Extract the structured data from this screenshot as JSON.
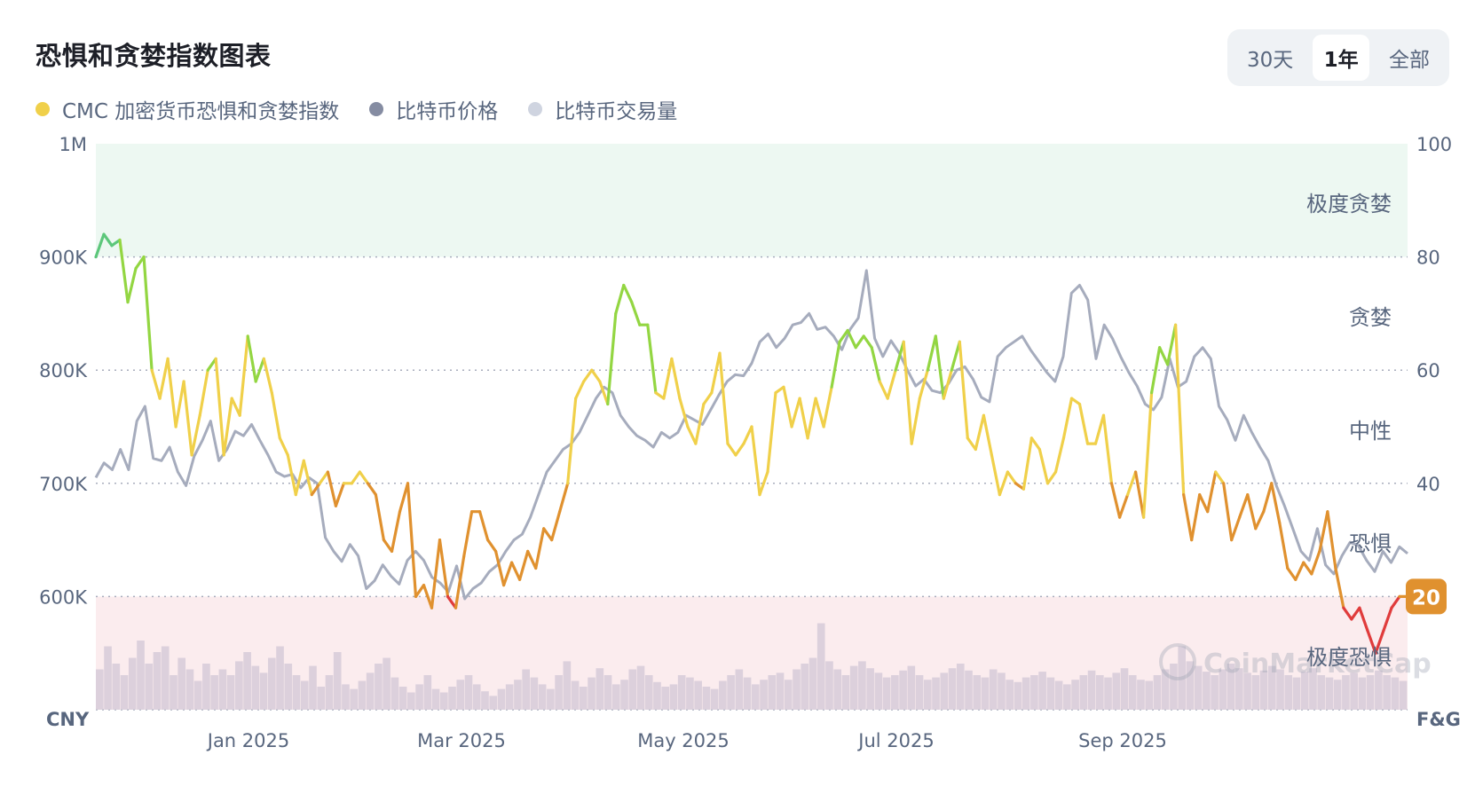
{
  "title": "恐惧和贪婪指数图表",
  "range_tabs": [
    {
      "label": "30天",
      "active": false
    },
    {
      "label": "1年",
      "active": true
    },
    {
      "label": "全部",
      "active": false
    }
  ],
  "legend": [
    {
      "label": "CMC 加密货币恐惧和贪婪指数",
      "color": "#f0d04a"
    },
    {
      "label": "比特币价格",
      "color": "#858ca2"
    },
    {
      "label": "比特币交易量",
      "color": "#cfd4e0"
    }
  ],
  "watermark": "CoinMarketCap",
  "colors": {
    "extreme_fear": "#e03c3c",
    "fear": "#e0912f",
    "neutral": "#f0d04a",
    "greed": "#93d642",
    "extreme_greed": "#5dc77b",
    "price_line": "#a6acbd",
    "volume_bars": "#d6cbd8",
    "greed_zone": "#edf8f2",
    "fear_zone": "#fbecee",
    "badge": "#e0912f"
  },
  "chart_data": {
    "type": "line",
    "x_ticks": [
      "Jan 2025",
      "Mar 2025",
      "May 2025",
      "Jul 2025",
      "Sep 2025"
    ],
    "left_axis": {
      "unit_label": "CNY",
      "ticks": [
        "1M",
        "900K",
        "800K",
        "700K",
        "600K"
      ],
      "min": 500000,
      "max": 1000000
    },
    "right_axis": {
      "unit_label": "F&G",
      "ticks": [
        "100",
        "80",
        "60",
        "40",
        "20"
      ],
      "min": 0,
      "max": 100
    },
    "zones": [
      {
        "label": "极度贪婪",
        "from": 80,
        "to": 100
      },
      {
        "label": "贪婪",
        "from": 60,
        "to": 80
      },
      {
        "label": "中性",
        "from": 40,
        "to": 60
      },
      {
        "label": "恐惧",
        "from": 20,
        "to": 40
      },
      {
        "label": "极度恐惧",
        "from": 0,
        "to": 20
      }
    ],
    "current_value": "20",
    "fear_greed_series": {
      "name": "CMC 加密货币恐惧和贪婪指数",
      "x_period": "approx. Dec 2024 – Nov 2025, evenly spaced",
      "values": [
        80,
        84,
        82,
        83,
        72,
        78,
        80,
        60,
        55,
        62,
        50,
        58,
        45,
        52,
        60,
        62,
        45,
        55,
        52,
        66,
        58,
        62,
        56,
        48,
        45,
        38,
        44,
        38,
        40,
        42,
        36,
        40,
        40,
        42,
        40,
        38,
        30,
        28,
        35,
        40,
        20,
        22,
        18,
        30,
        20,
        18,
        27,
        35,
        35,
        30,
        28,
        22,
        26,
        23,
        28,
        25,
        32,
        30,
        35,
        40,
        55,
        58,
        60,
        58,
        54,
        70,
        75,
        72,
        68,
        68,
        56,
        55,
        62,
        55,
        50,
        47,
        54,
        56,
        63,
        47,
        45,
        47,
        50,
        38,
        42,
        56,
        57,
        50,
        55,
        48,
        55,
        50,
        57,
        65,
        67,
        64,
        66,
        64,
        58,
        55,
        60,
        65,
        47,
        55,
        60,
        66,
        55,
        60,
        65,
        48,
        46,
        52,
        45,
        38,
        42,
        40,
        39,
        48,
        46,
        40,
        42,
        48,
        55,
        54,
        47,
        47,
        52,
        40,
        34,
        38,
        42,
        34,
        56,
        64,
        61,
        68,
        38,
        30,
        38,
        35,
        42,
        40,
        30,
        34,
        38,
        32,
        35,
        40,
        33,
        25,
        23,
        26,
        24,
        28,
        35,
        25,
        18,
        16,
        18,
        14,
        10,
        14,
        18,
        20,
        20
      ]
    },
    "price_series": {
      "name": "比特币价格",
      "x_period": "approx. Dec 2024 – Nov 2025, evenly spaced",
      "values": [
        705000,
        718000,
        712000,
        730000,
        712000,
        755000,
        768000,
        722000,
        720000,
        732000,
        710000,
        698000,
        724000,
        738000,
        755000,
        720000,
        730000,
        746000,
        742000,
        752000,
        738000,
        725000,
        710000,
        706000,
        708000,
        696000,
        705000,
        700000,
        652000,
        640000,
        631000,
        646000,
        636000,
        607000,
        614000,
        628000,
        618000,
        611000,
        632000,
        640000,
        632000,
        617000,
        612000,
        604000,
        627000,
        598000,
        607000,
        612000,
        622000,
        628000,
        640000,
        650000,
        655000,
        670000,
        690000,
        710000,
        720000,
        730000,
        735000,
        745000,
        760000,
        775000,
        785000,
        780000,
        760000,
        750000,
        742000,
        738000,
        732000,
        745000,
        740000,
        745000,
        760000,
        756000,
        752000,
        765000,
        778000,
        790000,
        796000,
        795000,
        806000,
        825000,
        832000,
        820000,
        828000,
        840000,
        842000,
        850000,
        836000,
        838000,
        830000,
        818000,
        836000,
        846000,
        888000,
        828000,
        812000,
        826000,
        815000,
        800000,
        786000,
        792000,
        782000,
        780000,
        788000,
        800000,
        803000,
        792000,
        776000,
        772000,
        812000,
        820000,
        825000,
        830000,
        818000,
        808000,
        798000,
        790000,
        812000,
        868000,
        875000,
        862000,
        810000,
        840000,
        828000,
        812000,
        798000,
        786000,
        770000,
        765000,
        776000,
        810000,
        785000,
        790000,
        812000,
        820000,
        810000,
        768000,
        756000,
        738000,
        760000,
        745000,
        732000,
        720000,
        698000,
        680000,
        660000,
        640000,
        632000,
        660000,
        628000,
        620000,
        636000,
        648000,
        645000,
        632000,
        622000,
        640000,
        630000,
        644000,
        638000
      ]
    },
    "volume_series": {
      "name": "比特币交易量",
      "note": "relative daily volume, 0–1 scale",
      "values": [
        0.35,
        0.55,
        0.4,
        0.3,
        0.45,
        0.6,
        0.4,
        0.5,
        0.55,
        0.3,
        0.45,
        0.35,
        0.25,
        0.4,
        0.3,
        0.35,
        0.3,
        0.42,
        0.5,
        0.38,
        0.32,
        0.45,
        0.55,
        0.4,
        0.3,
        0.25,
        0.38,
        0.2,
        0.3,
        0.5,
        0.22,
        0.18,
        0.25,
        0.32,
        0.4,
        0.45,
        0.28,
        0.2,
        0.15,
        0.22,
        0.3,
        0.18,
        0.15,
        0.2,
        0.26,
        0.3,
        0.22,
        0.16,
        0.12,
        0.18,
        0.22,
        0.26,
        0.35,
        0.28,
        0.22,
        0.18,
        0.3,
        0.42,
        0.25,
        0.2,
        0.28,
        0.36,
        0.3,
        0.22,
        0.26,
        0.35,
        0.38,
        0.3,
        0.24,
        0.2,
        0.22,
        0.3,
        0.28,
        0.25,
        0.2,
        0.18,
        0.25,
        0.3,
        0.35,
        0.28,
        0.22,
        0.26,
        0.3,
        0.32,
        0.26,
        0.35,
        0.4,
        0.45,
        0.75,
        0.42,
        0.35,
        0.3,
        0.38,
        0.42,
        0.36,
        0.32,
        0.28,
        0.3,
        0.34,
        0.38,
        0.3,
        0.26,
        0.28,
        0.32,
        0.36,
        0.4,
        0.34,
        0.3,
        0.28,
        0.35,
        0.32,
        0.26,
        0.24,
        0.28,
        0.3,
        0.33,
        0.28,
        0.25,
        0.22,
        0.26,
        0.3,
        0.34,
        0.3,
        0.28,
        0.32,
        0.36,
        0.3,
        0.26,
        0.25,
        0.3,
        0.35,
        0.4,
        0.55,
        0.42,
        0.38,
        0.33,
        0.3,
        0.35,
        0.4,
        0.36,
        0.32,
        0.3,
        0.34,
        0.38,
        0.35,
        0.3,
        0.28,
        0.33,
        0.36,
        0.3,
        0.28,
        0.26,
        0.3,
        0.32,
        0.28,
        0.3,
        0.34,
        0.3,
        0.28,
        0.25
      ]
    }
  }
}
